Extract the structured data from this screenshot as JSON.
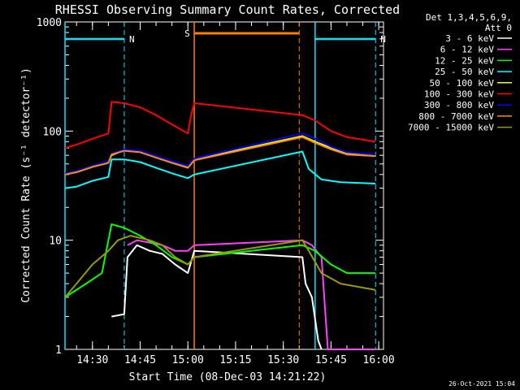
{
  "chart_data": {
    "type": "line",
    "title": "RHESSI Observing Summary Count Rates, Corrected",
    "xlabel": "Start Time (08-Dec-03 14:21:22)",
    "ylabel": "Corrected Count Rate (s⁻¹ detector⁻¹)",
    "yscale": "log",
    "ylim": [
      1,
      1000
    ],
    "xlim": [
      "14:21:22",
      "16:01:30"
    ],
    "x_tick_labels": [
      "14:30",
      "14:45",
      "15:00",
      "15:15",
      "15:30",
      "15:45",
      "16:00"
    ],
    "y_tick_labels": [
      "1",
      "10",
      "100",
      "1000"
    ],
    "legend_header": [
      "Det 1,3,4,5,6,9,",
      "Att 0"
    ],
    "legend_position": "right",
    "footer_timestamp": "26-Oct-2021 15:04",
    "annotations": [
      {
        "label": "N",
        "meaning": "night",
        "color": "#00e5ff",
        "start": "14:21:22",
        "end": "14:40:00"
      },
      {
        "label": "N",
        "meaning": "night",
        "color": "#00e5ff",
        "start": "15:40:00",
        "end": "15:59:00"
      },
      {
        "label": "S",
        "meaning": "SAA",
        "color": "#ff7f00",
        "start": "15:02:00",
        "end": "15:35:00"
      }
    ],
    "series": [
      {
        "name": "3 - 6 keV",
        "color": "#ffffff",
        "points": [
          [
            "14:36:00",
            2
          ],
          [
            "14:40:00",
            2.1
          ],
          [
            "14:41:00",
            7
          ],
          [
            "14:44:00",
            9
          ],
          [
            "14:48:00",
            8
          ],
          [
            "14:52:00",
            7.5
          ],
          [
            "14:56:00",
            6
          ],
          [
            "15:00:00",
            5
          ],
          [
            "15:02:00",
            8
          ],
          [
            "15:36:00",
            7
          ],
          [
            "15:37:00",
            4
          ],
          [
            "15:39:00",
            3
          ],
          [
            "15:41:00",
            1.2
          ],
          [
            "15:42:00",
            1
          ]
        ]
      },
      {
        "name": "6 - 12 keV",
        "color": "#ff40ff",
        "points": [
          [
            "14:41:00",
            9
          ],
          [
            "14:44:00",
            10
          ],
          [
            "14:48:00",
            9.5
          ],
          [
            "14:52:00",
            9
          ],
          [
            "14:56:00",
            8
          ],
          [
            "15:00:00",
            8
          ],
          [
            "15:02:00",
            9
          ],
          [
            "15:36:00",
            10
          ],
          [
            "15:39:00",
            9
          ],
          [
            "15:42:00",
            7
          ],
          [
            "15:44:00",
            1
          ],
          [
            "15:59:00",
            1
          ]
        ]
      },
      {
        "name": "12 - 25 keV",
        "color": "#00ff00",
        "points": [
          [
            "14:21:22",
            3
          ],
          [
            "14:28:00",
            4
          ],
          [
            "14:33:00",
            5
          ],
          [
            "14:36:00",
            14
          ],
          [
            "14:40:00",
            13
          ],
          [
            "14:45:00",
            11
          ],
          [
            "14:50:00",
            9
          ],
          [
            "14:55:00",
            7
          ],
          [
            "15:00:00",
            6
          ],
          [
            "15:02:00",
            7
          ],
          [
            "15:36:00",
            9
          ],
          [
            "15:40:00",
            8
          ],
          [
            "15:45:00",
            6
          ],
          [
            "15:50:00",
            5
          ],
          [
            "15:59:00",
            5
          ]
        ]
      },
      {
        "name": "25 - 50 keV",
        "color": "#00ffff",
        "points": [
          [
            "14:21:22",
            30
          ],
          [
            "14:25:00",
            31
          ],
          [
            "14:30:00",
            35
          ],
          [
            "14:35:00",
            38
          ],
          [
            "14:36:00",
            55
          ],
          [
            "14:40:00",
            55
          ],
          [
            "14:45:00",
            52
          ],
          [
            "14:50:00",
            46
          ],
          [
            "14:55:00",
            41
          ],
          [
            "15:00:00",
            37
          ],
          [
            "15:02:00",
            40
          ],
          [
            "15:36:00",
            65
          ],
          [
            "15:38:00",
            45
          ],
          [
            "15:42:00",
            36
          ],
          [
            "15:48:00",
            34
          ],
          [
            "15:59:00",
            33
          ]
        ]
      },
      {
        "name": "50 - 100 keV",
        "color": "#ffff00",
        "points": [
          [
            "14:21:22",
            40
          ],
          [
            "14:25:00",
            42
          ],
          [
            "14:30:00",
            47
          ],
          [
            "14:35:00",
            52
          ],
          [
            "14:36:00",
            60
          ],
          [
            "14:40:00",
            67
          ],
          [
            "14:45:00",
            65
          ],
          [
            "14:50:00",
            58
          ],
          [
            "14:55:00",
            52
          ],
          [
            "15:00:00",
            47
          ],
          [
            "15:02:00",
            55
          ],
          [
            "15:36:00",
            90
          ],
          [
            "15:40:00",
            80
          ],
          [
            "15:45:00",
            70
          ],
          [
            "15:50:00",
            63
          ],
          [
            "15:59:00",
            60
          ]
        ]
      },
      {
        "name": "100 - 300 keV",
        "color": "#ff0000",
        "points": [
          [
            "14:21:22",
            70
          ],
          [
            "14:25:00",
            75
          ],
          [
            "14:30:00",
            85
          ],
          [
            "14:35:00",
            95
          ],
          [
            "14:36:00",
            185
          ],
          [
            "14:40:00",
            180
          ],
          [
            "14:45:00",
            165
          ],
          [
            "14:50:00",
            140
          ],
          [
            "14:55:00",
            115
          ],
          [
            "15:00:00",
            95
          ],
          [
            "15:01:00",
            140
          ],
          [
            "15:02:00",
            180
          ],
          [
            "15:36:00",
            140
          ],
          [
            "15:40:00",
            125
          ],
          [
            "15:45:00",
            100
          ],
          [
            "15:50:00",
            88
          ],
          [
            "15:59:00",
            80
          ]
        ]
      },
      {
        "name": "300 - 800 keV",
        "color": "#0000ff",
        "points": [
          [
            "14:21:22",
            41
          ],
          [
            "14:25:00",
            43
          ],
          [
            "14:30:00",
            48
          ],
          [
            "14:35:00",
            53
          ],
          [
            "14:36:00",
            62
          ],
          [
            "14:40:00",
            68
          ],
          [
            "14:45:00",
            66
          ],
          [
            "14:50:00",
            59
          ],
          [
            "14:55:00",
            53
          ],
          [
            "15:00:00",
            48
          ],
          [
            "15:02:00",
            56
          ],
          [
            "15:36:00",
            95
          ],
          [
            "15:40:00",
            85
          ],
          [
            "15:45:00",
            72
          ],
          [
            "15:50:00",
            64
          ],
          [
            "15:59:00",
            61
          ]
        ]
      },
      {
        "name": "800 - 7000 keV",
        "color": "#ff8c00",
        "points": [
          [
            "14:21:22",
            40
          ],
          [
            "14:25:00",
            42
          ],
          [
            "14:30:00",
            47
          ],
          [
            "14:35:00",
            51
          ],
          [
            "14:36:00",
            61
          ],
          [
            "14:40:00",
            66
          ],
          [
            "14:45:00",
            64
          ],
          [
            "14:50:00",
            57
          ],
          [
            "14:55:00",
            51
          ],
          [
            "15:00:00",
            46
          ],
          [
            "15:02:00",
            54
          ],
          [
            "15:36:00",
            88
          ],
          [
            "15:40:00",
            78
          ],
          [
            "15:45:00",
            68
          ],
          [
            "15:50:00",
            61
          ],
          [
            "15:59:00",
            59
          ]
        ]
      },
      {
        "name": "7000 - 15000 keV",
        "color": "#9a9a00",
        "points": [
          [
            "14:21:22",
            3
          ],
          [
            "14:25:00",
            4
          ],
          [
            "14:30:00",
            6
          ],
          [
            "14:35:00",
            8
          ],
          [
            "14:38:00",
            10
          ],
          [
            "14:42:00",
            11
          ],
          [
            "14:48:00",
            10
          ],
          [
            "14:52:00",
            9
          ],
          [
            "14:56:00",
            7
          ],
          [
            "15:00:00",
            6
          ],
          [
            "15:02:00",
            7
          ],
          [
            "15:36:00",
            10
          ],
          [
            "15:38:00",
            8
          ],
          [
            "15:42:00",
            5
          ],
          [
            "15:48:00",
            4
          ],
          [
            "15:59:00",
            3.5
          ]
        ]
      }
    ]
  }
}
